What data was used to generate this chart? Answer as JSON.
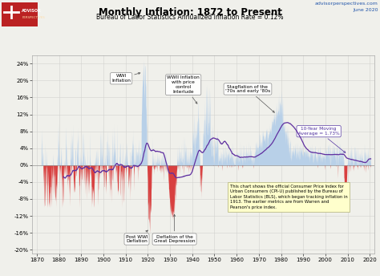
{
  "title": "Monthly Inflation: 1872 to Present",
  "subtitle": "Bureau of Labor Statistics Annualized Inflation Rate = 0.12%",
  "watermark_line1": "advisorperspectives.com",
  "watermark_line2": "June 2020",
  "ytick_vals": [
    24,
    20,
    16,
    12,
    8,
    4,
    0,
    -4,
    -8,
    -12,
    -16,
    -20
  ],
  "ylabel_ticks": [
    "24%",
    "20%",
    "16%",
    "12%",
    "8%",
    "4%",
    "0%",
    "-4%",
    "-8%",
    "-12%",
    "-16%",
    "-20%"
  ],
  "xtick_vals": [
    1870,
    1880,
    1890,
    1900,
    1910,
    1920,
    1930,
    1940,
    1950,
    1960,
    1970,
    1980,
    1990,
    2000,
    2010,
    2020
  ],
  "xlim": [
    1868,
    2022
  ],
  "ylim": [
    -21,
    26
  ],
  "positive_color": "#b8d0e8",
  "negative_color": "#d84040",
  "ma_color": "#6030a0",
  "background_color": "#f0f0eb",
  "grid_color": "#d0d0cc",
  "info_box_color": "#ffffcc",
  "info_box": "This chart shows the official Consumer Price Index for\nUrban Consumers (CPI-U) published by the Bureau of\nLabor Statistics (BLS), which began tracking inflation in\n1913. The earlier metrics are from Warren and\nPearson's price index.",
  "logo_bg": "#bb2222"
}
